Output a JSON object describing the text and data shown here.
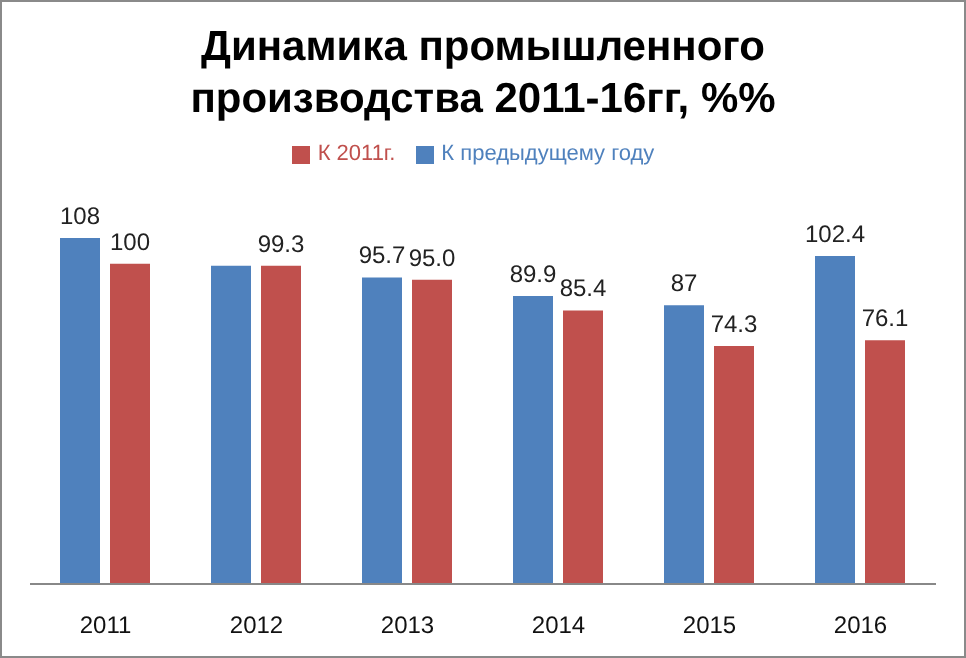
{
  "chart_data": {
    "type": "bar",
    "title": "Динамика промышленного производства 2011-16гг, %%",
    "categories": [
      "2011",
      "2012",
      "2013",
      "2014",
      "2015",
      "2016"
    ],
    "series": [
      {
        "name": "К предыдущему году",
        "color": "#4f81bd",
        "values": [
          108,
          99.3,
          95.7,
          89.9,
          87,
          102.4
        ],
        "value_labels": [
          "108",
          null,
          "95.7",
          "89.9",
          "87",
          "102.4"
        ]
      },
      {
        "name": "К 2011г.",
        "color": "#c0504d",
        "values": [
          100,
          99.3,
          95.0,
          85.4,
          74.3,
          76.1
        ],
        "value_labels": [
          "100",
          "99.3",
          "95.0",
          "85.4",
          "74.3",
          "76.1"
        ]
      }
    ],
    "legend": "top",
    "grid": false
  }
}
